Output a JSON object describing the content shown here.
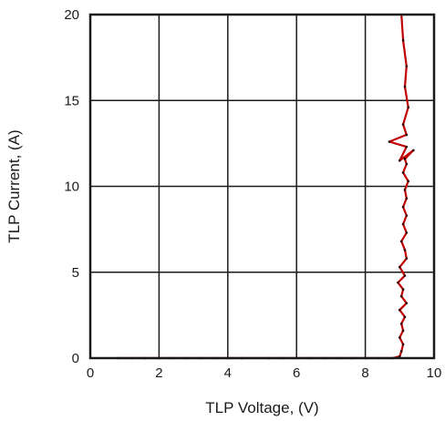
{
  "chart_data": {
    "type": "line",
    "title": "",
    "xlabel": "TLP Voltage, (V)",
    "ylabel": "TLP Current, (A)",
    "xlim": [
      0,
      10
    ],
    "ylim": [
      0,
      20
    ],
    "xticks": [
      "0",
      "2",
      "4",
      "6",
      "8",
      "10"
    ],
    "yticks": [
      "0",
      "5",
      "10",
      "15",
      "20"
    ],
    "grid": true,
    "legend": "none",
    "series": [
      {
        "name": "",
        "color": "#c00000",
        "x": [
          0.8,
          1.2,
          1.6,
          2.0,
          2.4,
          2.8,
          3.2,
          3.6,
          4.0,
          4.4,
          4.8,
          5.2,
          5.6,
          6.0,
          6.4,
          6.8,
          7.2,
          7.6,
          8.0,
          8.4,
          8.8,
          9.0,
          9.05,
          9.1,
          9.0,
          9.1,
          9.05,
          9.15,
          9.0,
          9.2,
          9.05,
          9.1,
          8.95,
          9.15,
          9.0,
          9.2,
          9.15,
          9.05,
          9.2,
          9.1,
          9.2,
          9.1,
          9.2,
          9.15,
          9.25,
          9.1,
          9.2,
          9.15,
          9.4,
          9.0,
          9.2,
          8.7,
          9.2,
          9.1,
          9.25,
          9.15,
          9.2,
          9.1,
          9.05
        ],
        "y": [
          0.0,
          0.0,
          0.0,
          0.0,
          0.0,
          0.0,
          0.0,
          0.0,
          0.0,
          0.0,
          0.0,
          0.0,
          0.0,
          0.0,
          0.0,
          0.0,
          0.0,
          0.0,
          0.0,
          0.0,
          0.0,
          0.1,
          0.4,
          0.8,
          1.2,
          1.6,
          2.0,
          2.4,
          2.8,
          3.2,
          3.6,
          4.0,
          4.4,
          4.8,
          5.3,
          5.8,
          6.3,
          6.8,
          7.3,
          7.8,
          8.3,
          8.8,
          9.3,
          9.8,
          10.3,
          10.8,
          11.3,
          11.6,
          12.1,
          11.5,
          12.3,
          12.6,
          13.0,
          13.6,
          14.6,
          15.8,
          17.0,
          18.5,
          20.0
        ]
      }
    ]
  }
}
